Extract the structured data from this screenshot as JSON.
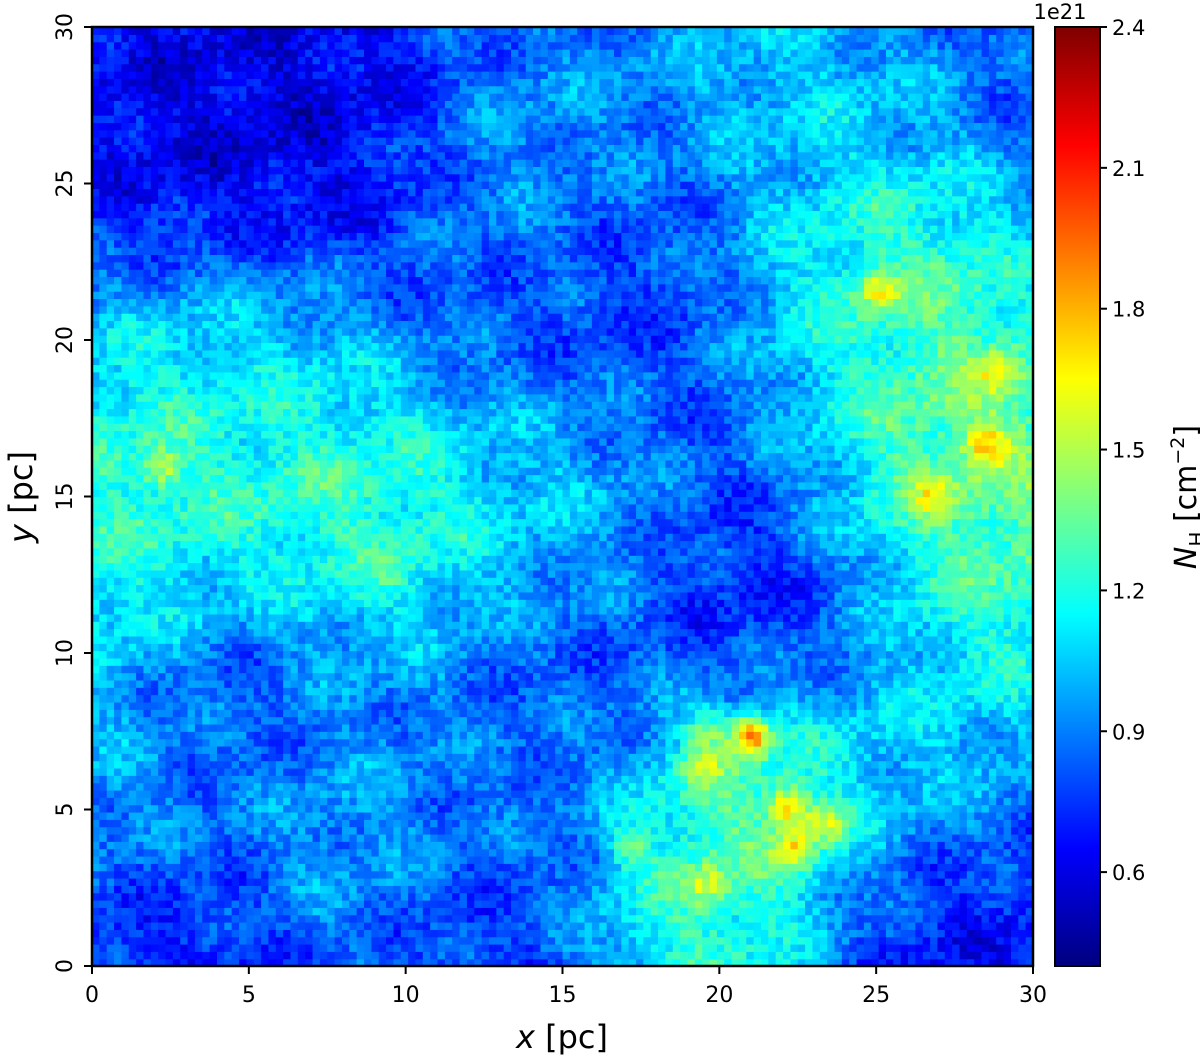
{
  "chart_data": {
    "type": "heatmap",
    "title": "",
    "xlabel": {
      "var": "x",
      "unit": " [pc]"
    },
    "ylabel": {
      "var": "y",
      "unit": " [pc]"
    },
    "xlim": [
      0,
      30
    ],
    "ylim": [
      0,
      30
    ],
    "x_ticks": [
      0,
      5,
      10,
      15,
      20,
      25,
      30
    ],
    "y_ticks": [
      0,
      5,
      10,
      15,
      20,
      25,
      30
    ],
    "x_tick_labels": [
      "0",
      "5",
      "10",
      "15",
      "20",
      "25",
      "30"
    ],
    "y_tick_labels": [
      "0",
      "5",
      "10",
      "15",
      "20",
      "25",
      "30"
    ],
    "grid": false,
    "colormap": "jet",
    "colormap_stops": [
      "#00007f",
      "#0000ff",
      "#007fff",
      "#00ffff",
      "#7fff7f",
      "#ffff00",
      "#ff7f00",
      "#ff0000",
      "#7f0000"
    ],
    "colorbar": {
      "label_var": "N",
      "label_sub": "H",
      "label_unit": " [cm",
      "label_exp": "−2",
      "label_close": "]",
      "offset_text": "1e21",
      "vmin": 0.4,
      "vmax": 2.4,
      "ticks": [
        0.6,
        0.9,
        1.2,
        1.5,
        1.8,
        2.1,
        2.4
      ],
      "tick_labels": [
        "0.6",
        "0.9",
        "1.2",
        "1.5",
        "1.8",
        "2.1",
        "2.4"
      ]
    },
    "grid_resolution": 128,
    "background_level": 0.82,
    "features": [
      {
        "kind": "clump",
        "x": 21.0,
        "y": 7.4,
        "peak": 2.35
      },
      {
        "kind": "clump",
        "x": 22.2,
        "y": 5.1,
        "peak": 2.05
      },
      {
        "kind": "clump",
        "x": 22.4,
        "y": 3.7,
        "peak": 2.0
      },
      {
        "kind": "clump",
        "x": 23.4,
        "y": 4.6,
        "peak": 1.95
      },
      {
        "kind": "clump",
        "x": 19.6,
        "y": 7.6,
        "peak": 1.85
      },
      {
        "kind": "clump",
        "x": 19.6,
        "y": 2.6,
        "peak": 1.85
      },
      {
        "kind": "clump",
        "x": 17.1,
        "y": 3.8,
        "peak": 1.8
      },
      {
        "kind": "clump",
        "x": 19.5,
        "y": 6.4,
        "peak": 1.85
      },
      {
        "kind": "clump",
        "x": 25.1,
        "y": 21.6,
        "peak": 1.95
      },
      {
        "kind": "clump",
        "x": 28.5,
        "y": 16.7,
        "peak": 1.95
      },
      {
        "kind": "clump",
        "x": 26.8,
        "y": 15.0,
        "peak": 1.85
      },
      {
        "kind": "clump",
        "x": 28.9,
        "y": 19.0,
        "peak": 1.85
      },
      {
        "kind": "clump",
        "x": 2.2,
        "y": 15.9,
        "peak": 1.9
      },
      {
        "kind": "clump",
        "x": 9.4,
        "y": 12.4,
        "peak": 1.6
      },
      {
        "kind": "region",
        "x": 21.5,
        "y": 5.0,
        "level": 1.55
      },
      {
        "kind": "region",
        "x": 18.7,
        "y": 1.9,
        "level": 1.45
      },
      {
        "kind": "region",
        "x": 26.5,
        "y": 7.0,
        "level": 1.2
      },
      {
        "kind": "region",
        "x": 28.2,
        "y": 16.2,
        "level": 1.6
      },
      {
        "kind": "region",
        "x": 28.5,
        "y": 12.5,
        "level": 1.4
      },
      {
        "kind": "region",
        "x": 26.0,
        "y": 16.2,
        "level": 1.45
      },
      {
        "kind": "region",
        "x": 25.3,
        "y": 21.2,
        "level": 1.5
      },
      {
        "kind": "region",
        "x": 22.8,
        "y": 19.8,
        "level": 1.25
      },
      {
        "kind": "region",
        "x": 22.0,
        "y": 27.5,
        "level": 1.15
      },
      {
        "kind": "region",
        "x": 7.0,
        "y": 14.5,
        "level": 1.4
      },
      {
        "kind": "region",
        "x": 9.5,
        "y": 12.5,
        "level": 1.45
      },
      {
        "kind": "region",
        "x": 2.0,
        "y": 16.5,
        "level": 1.35
      },
      {
        "kind": "region",
        "x": 0.7,
        "y": 12.8,
        "level": 1.35
      },
      {
        "kind": "region",
        "x": 5.0,
        "y": 19.0,
        "level": 1.15
      },
      {
        "kind": "region",
        "x": 15.5,
        "y": 15.5,
        "level": 1.15
      },
      {
        "kind": "region",
        "x": 14.8,
        "y": 25.0,
        "level": 1.15
      },
      {
        "kind": "region",
        "x": 8.5,
        "y": 5.0,
        "level": 1.2
      },
      {
        "kind": "region",
        "x": 0.8,
        "y": 5.0,
        "level": 1.2
      },
      {
        "kind": "region",
        "x": 13.0,
        "y": 6.0,
        "level": 1.05
      },
      {
        "kind": "void",
        "x": 3.5,
        "y": 27.5,
        "level": 0.55
      },
      {
        "kind": "void",
        "x": 6.5,
        "y": 27.0,
        "level": 0.55
      },
      {
        "kind": "void",
        "x": 1.5,
        "y": 1.8,
        "level": 0.55
      },
      {
        "kind": "void",
        "x": 13.2,
        "y": 2.5,
        "level": 0.6
      },
      {
        "kind": "void",
        "x": 16.5,
        "y": 23.0,
        "level": 0.6
      },
      {
        "kind": "void",
        "x": 20.5,
        "y": 18.0,
        "level": 0.65
      },
      {
        "kind": "void",
        "x": 22.5,
        "y": 12.0,
        "level": 0.6
      },
      {
        "kind": "void",
        "x": 27.0,
        "y": 1.5,
        "level": 0.6
      },
      {
        "kind": "void",
        "x": 12.5,
        "y": 8.5,
        "level": 0.7
      },
      {
        "kind": "void",
        "x": 5.5,
        "y": 9.0,
        "level": 0.65
      }
    ]
  }
}
